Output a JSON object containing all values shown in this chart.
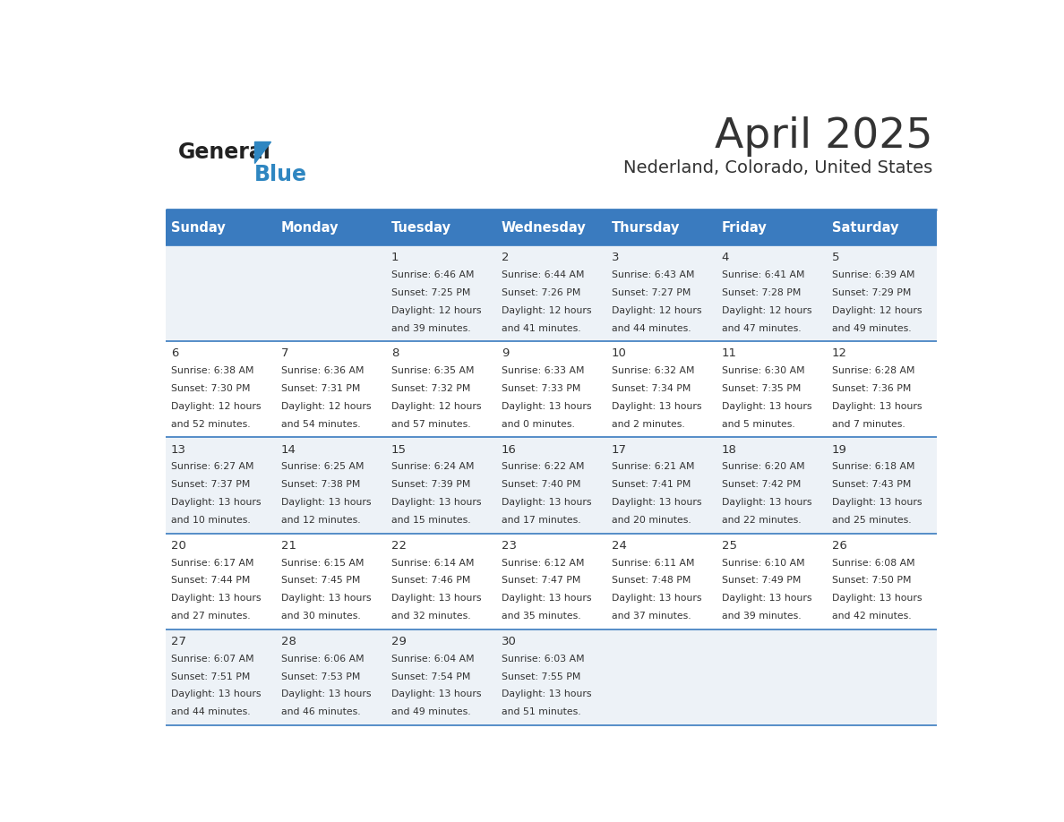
{
  "title": "April 2025",
  "subtitle": "Nederland, Colorado, United States",
  "header_color": "#3a7bbf",
  "header_text_color": "#ffffff",
  "cell_bg_even": "#edf2f7",
  "cell_bg_odd": "#ffffff",
  "border_color": "#3a7bbf",
  "day_headers": [
    "Sunday",
    "Monday",
    "Tuesday",
    "Wednesday",
    "Thursday",
    "Friday",
    "Saturday"
  ],
  "text_color": "#333333",
  "logo_general_color": "#222222",
  "logo_blue_color": "#2e86c1",
  "weeks": [
    [
      {
        "day": "",
        "sunrise": "",
        "sunset": "",
        "daylight": ""
      },
      {
        "day": "",
        "sunrise": "",
        "sunset": "",
        "daylight": ""
      },
      {
        "day": "1",
        "sunrise": "6:46 AM",
        "sunset": "7:25 PM",
        "daylight": "12 hours and 39 minutes."
      },
      {
        "day": "2",
        "sunrise": "6:44 AM",
        "sunset": "7:26 PM",
        "daylight": "12 hours and 41 minutes."
      },
      {
        "day": "3",
        "sunrise": "6:43 AM",
        "sunset": "7:27 PM",
        "daylight": "12 hours and 44 minutes."
      },
      {
        "day": "4",
        "sunrise": "6:41 AM",
        "sunset": "7:28 PM",
        "daylight": "12 hours and 47 minutes."
      },
      {
        "day": "5",
        "sunrise": "6:39 AM",
        "sunset": "7:29 PM",
        "daylight": "12 hours and 49 minutes."
      }
    ],
    [
      {
        "day": "6",
        "sunrise": "6:38 AM",
        "sunset": "7:30 PM",
        "daylight": "12 hours and 52 minutes."
      },
      {
        "day": "7",
        "sunrise": "6:36 AM",
        "sunset": "7:31 PM",
        "daylight": "12 hours and 54 minutes."
      },
      {
        "day": "8",
        "sunrise": "6:35 AM",
        "sunset": "7:32 PM",
        "daylight": "12 hours and 57 minutes."
      },
      {
        "day": "9",
        "sunrise": "6:33 AM",
        "sunset": "7:33 PM",
        "daylight": "13 hours and 0 minutes."
      },
      {
        "day": "10",
        "sunrise": "6:32 AM",
        "sunset": "7:34 PM",
        "daylight": "13 hours and 2 minutes."
      },
      {
        "day": "11",
        "sunrise": "6:30 AM",
        "sunset": "7:35 PM",
        "daylight": "13 hours and 5 minutes."
      },
      {
        "day": "12",
        "sunrise": "6:28 AM",
        "sunset": "7:36 PM",
        "daylight": "13 hours and 7 minutes."
      }
    ],
    [
      {
        "day": "13",
        "sunrise": "6:27 AM",
        "sunset": "7:37 PM",
        "daylight": "13 hours and 10 minutes."
      },
      {
        "day": "14",
        "sunrise": "6:25 AM",
        "sunset": "7:38 PM",
        "daylight": "13 hours and 12 minutes."
      },
      {
        "day": "15",
        "sunrise": "6:24 AM",
        "sunset": "7:39 PM",
        "daylight": "13 hours and 15 minutes."
      },
      {
        "day": "16",
        "sunrise": "6:22 AM",
        "sunset": "7:40 PM",
        "daylight": "13 hours and 17 minutes."
      },
      {
        "day": "17",
        "sunrise": "6:21 AM",
        "sunset": "7:41 PM",
        "daylight": "13 hours and 20 minutes."
      },
      {
        "day": "18",
        "sunrise": "6:20 AM",
        "sunset": "7:42 PM",
        "daylight": "13 hours and 22 minutes."
      },
      {
        "day": "19",
        "sunrise": "6:18 AM",
        "sunset": "7:43 PM",
        "daylight": "13 hours and 25 minutes."
      }
    ],
    [
      {
        "day": "20",
        "sunrise": "6:17 AM",
        "sunset": "7:44 PM",
        "daylight": "13 hours and 27 minutes."
      },
      {
        "day": "21",
        "sunrise": "6:15 AM",
        "sunset": "7:45 PM",
        "daylight": "13 hours and 30 minutes."
      },
      {
        "day": "22",
        "sunrise": "6:14 AM",
        "sunset": "7:46 PM",
        "daylight": "13 hours and 32 minutes."
      },
      {
        "day": "23",
        "sunrise": "6:12 AM",
        "sunset": "7:47 PM",
        "daylight": "13 hours and 35 minutes."
      },
      {
        "day": "24",
        "sunrise": "6:11 AM",
        "sunset": "7:48 PM",
        "daylight": "13 hours and 37 minutes."
      },
      {
        "day": "25",
        "sunrise": "6:10 AM",
        "sunset": "7:49 PM",
        "daylight": "13 hours and 39 minutes."
      },
      {
        "day": "26",
        "sunrise": "6:08 AM",
        "sunset": "7:50 PM",
        "daylight": "13 hours and 42 minutes."
      }
    ],
    [
      {
        "day": "27",
        "sunrise": "6:07 AM",
        "sunset": "7:51 PM",
        "daylight": "13 hours and 44 minutes."
      },
      {
        "day": "28",
        "sunrise": "6:06 AM",
        "sunset": "7:53 PM",
        "daylight": "13 hours and 46 minutes."
      },
      {
        "day": "29",
        "sunrise": "6:04 AM",
        "sunset": "7:54 PM",
        "daylight": "13 hours and 49 minutes."
      },
      {
        "day": "30",
        "sunrise": "6:03 AM",
        "sunset": "7:55 PM",
        "daylight": "13 hours and 51 minutes."
      },
      {
        "day": "",
        "sunrise": "",
        "sunset": "",
        "daylight": ""
      },
      {
        "day": "",
        "sunrise": "",
        "sunset": "",
        "daylight": ""
      },
      {
        "day": "",
        "sunrise": "",
        "sunset": "",
        "daylight": ""
      }
    ]
  ]
}
